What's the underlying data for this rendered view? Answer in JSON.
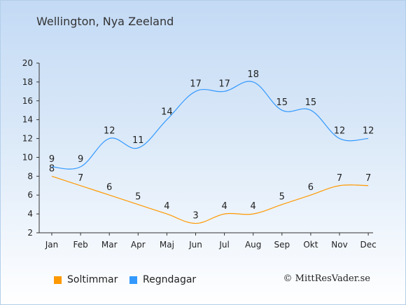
{
  "title": "Wellington, Nya Zeeland",
  "copyright": "© MittResVader.se",
  "chart_data": {
    "type": "line",
    "categories": [
      "Jan",
      "Feb",
      "Mar",
      "Apr",
      "Maj",
      "Jun",
      "Jul",
      "Aug",
      "Sep",
      "Okt",
      "Nov",
      "Dec"
    ],
    "series": [
      {
        "name": "Soltimmar",
        "color": "#ff9900",
        "values": [
          8,
          7,
          6,
          5,
          4,
          3,
          4,
          4,
          5,
          6,
          7,
          7
        ]
      },
      {
        "name": "Regndagar",
        "color": "#3399ff",
        "values": [
          9,
          9,
          12,
          11,
          14,
          17,
          17,
          18,
          15,
          15,
          12,
          12
        ]
      }
    ],
    "yticks": [
      2,
      4,
      6,
      8,
      10,
      12,
      14,
      16,
      18,
      20
    ],
    "ylim": [
      2,
      20
    ],
    "grid": false,
    "legend_position": "bottom"
  }
}
